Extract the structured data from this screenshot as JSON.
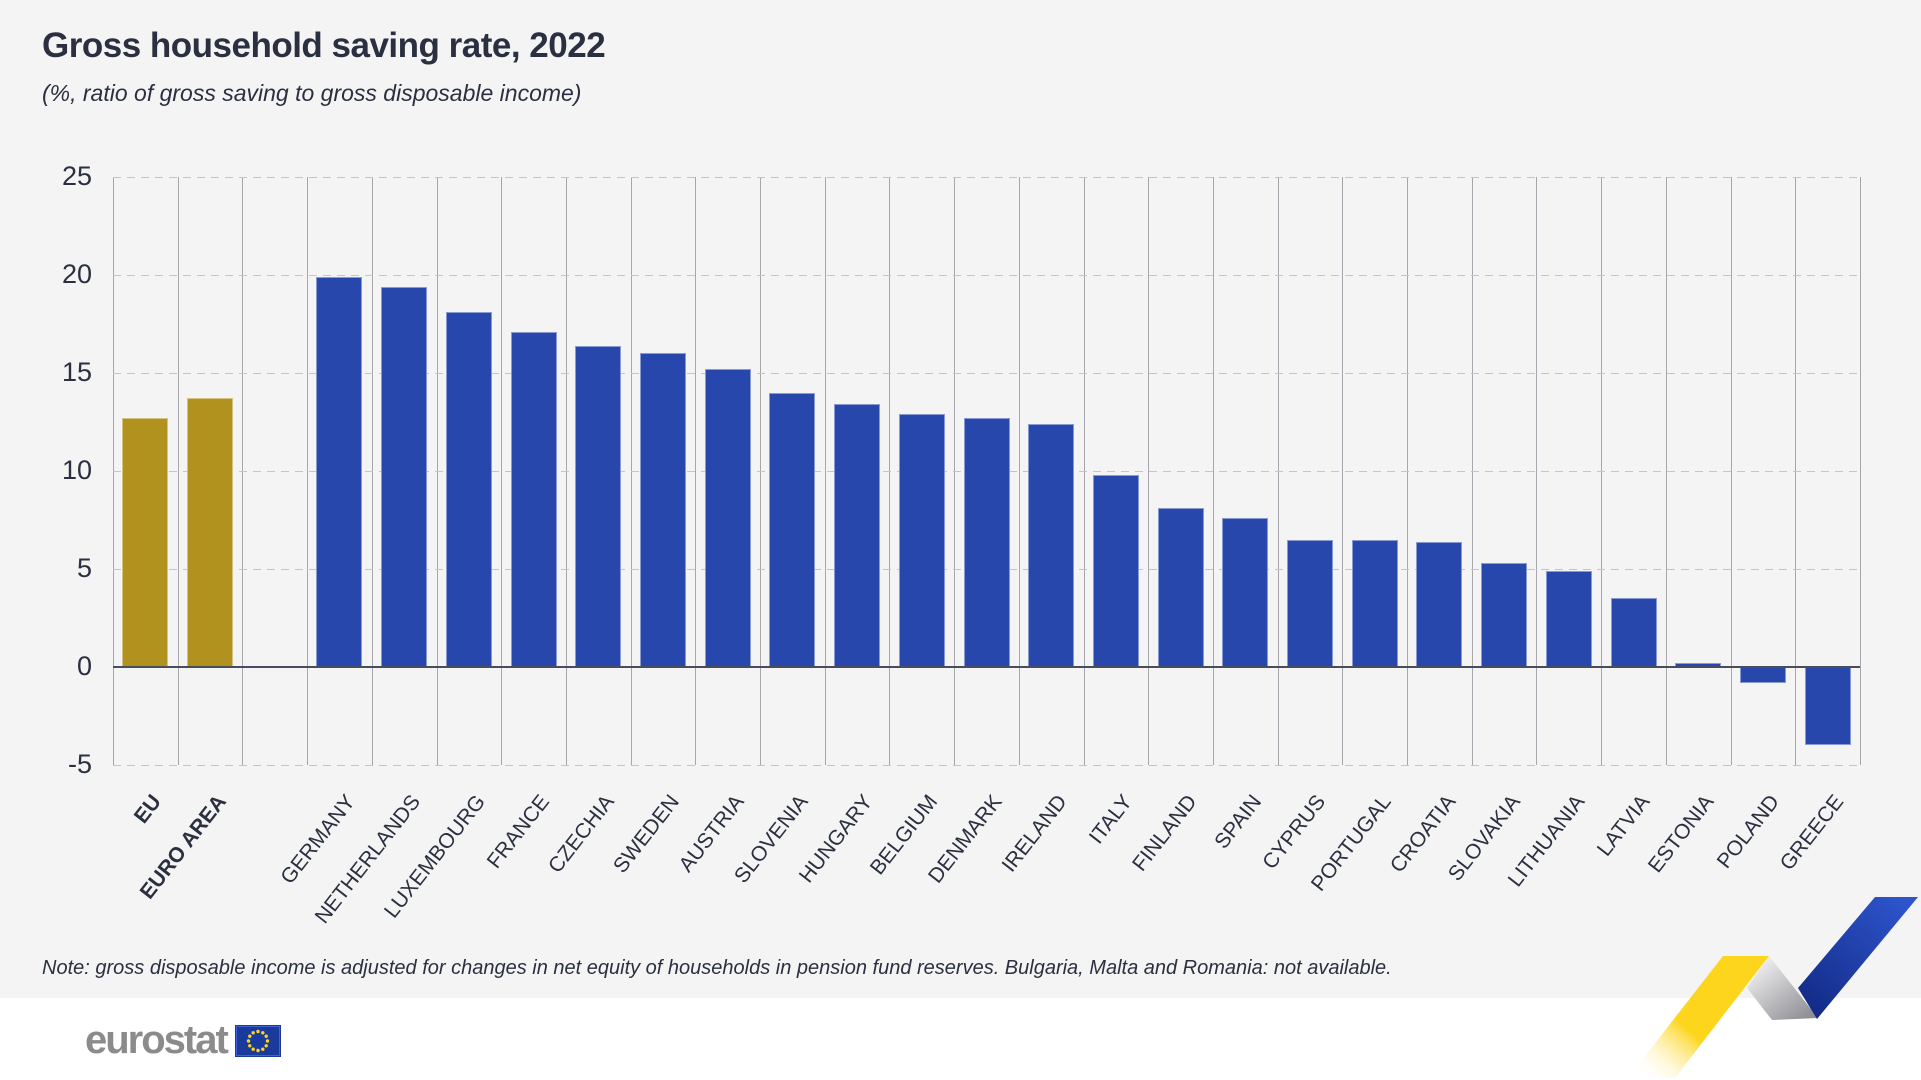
{
  "header": {
    "title": "Gross household saving rate, 2022",
    "subtitle": "(%, ratio of gross saving to gross disposable income)"
  },
  "note": "Note: gross disposable income is adjusted for changes in net equity of households in pension fund reserves. Bulgaria, Malta and Romania: not available.",
  "logo": {
    "text": "eurostat",
    "flag_icon": "eu-flag-icon"
  },
  "colors": {
    "background": "#f4f4f5",
    "footer_background": "#ffffff",
    "text": "#2a3040",
    "gold_bar": "#b2921e",
    "blue_bar": "#2847ad",
    "grid_dashed": "#c4c4c9",
    "column_line": "#a6a6ac",
    "zero_line": "#494d5b",
    "logo_gray": "#8b8b8b",
    "ribbon_yellow": "#fdd51c",
    "ribbon_blue": "#2e55cd",
    "ribbon_gray": "#8e8e94"
  },
  "chart_data": {
    "type": "bar",
    "title": "Gross household saving rate, 2022",
    "subtitle": "(%, ratio of gross saving to gross disposable income)",
    "xlabel": "",
    "ylabel": "%",
    "ylim": [
      -5,
      25
    ],
    "yticks": [
      25,
      20,
      15,
      10,
      5,
      0,
      -5
    ],
    "grid": "horizontal dashed gridlines, solid vertical column separators",
    "legend_position": "none",
    "highlight_indices": [
      0,
      1
    ],
    "gap_after_index": 1,
    "categories": [
      "EU",
      "EURO AREA",
      "GERMANY",
      "NETHERLANDS",
      "LUXEMBOURG",
      "FRANCE",
      "CZECHIA",
      "SWEDEN",
      "AUSTRIA",
      "SLOVENIA",
      "HUNGARY",
      "BELGIUM",
      "DENMARK",
      "IRELAND",
      "ITALY",
      "FINLAND",
      "SPAIN",
      "CYPRUS",
      "PORTUGAL",
      "CROATIA",
      "SLOVAKIA",
      "LITHUANIA",
      "LATVIA",
      "ESTONIA",
      "POLAND",
      "GREECE"
    ],
    "values": [
      12.7,
      13.7,
      19.9,
      19.4,
      18.1,
      17.1,
      16.4,
      16.0,
      15.2,
      14.0,
      13.4,
      12.9,
      12.7,
      12.4,
      9.8,
      8.1,
      7.6,
      6.5,
      6.5,
      6.4,
      5.3,
      4.9,
      3.5,
      0.2,
      -0.8,
      -4.0
    ]
  }
}
